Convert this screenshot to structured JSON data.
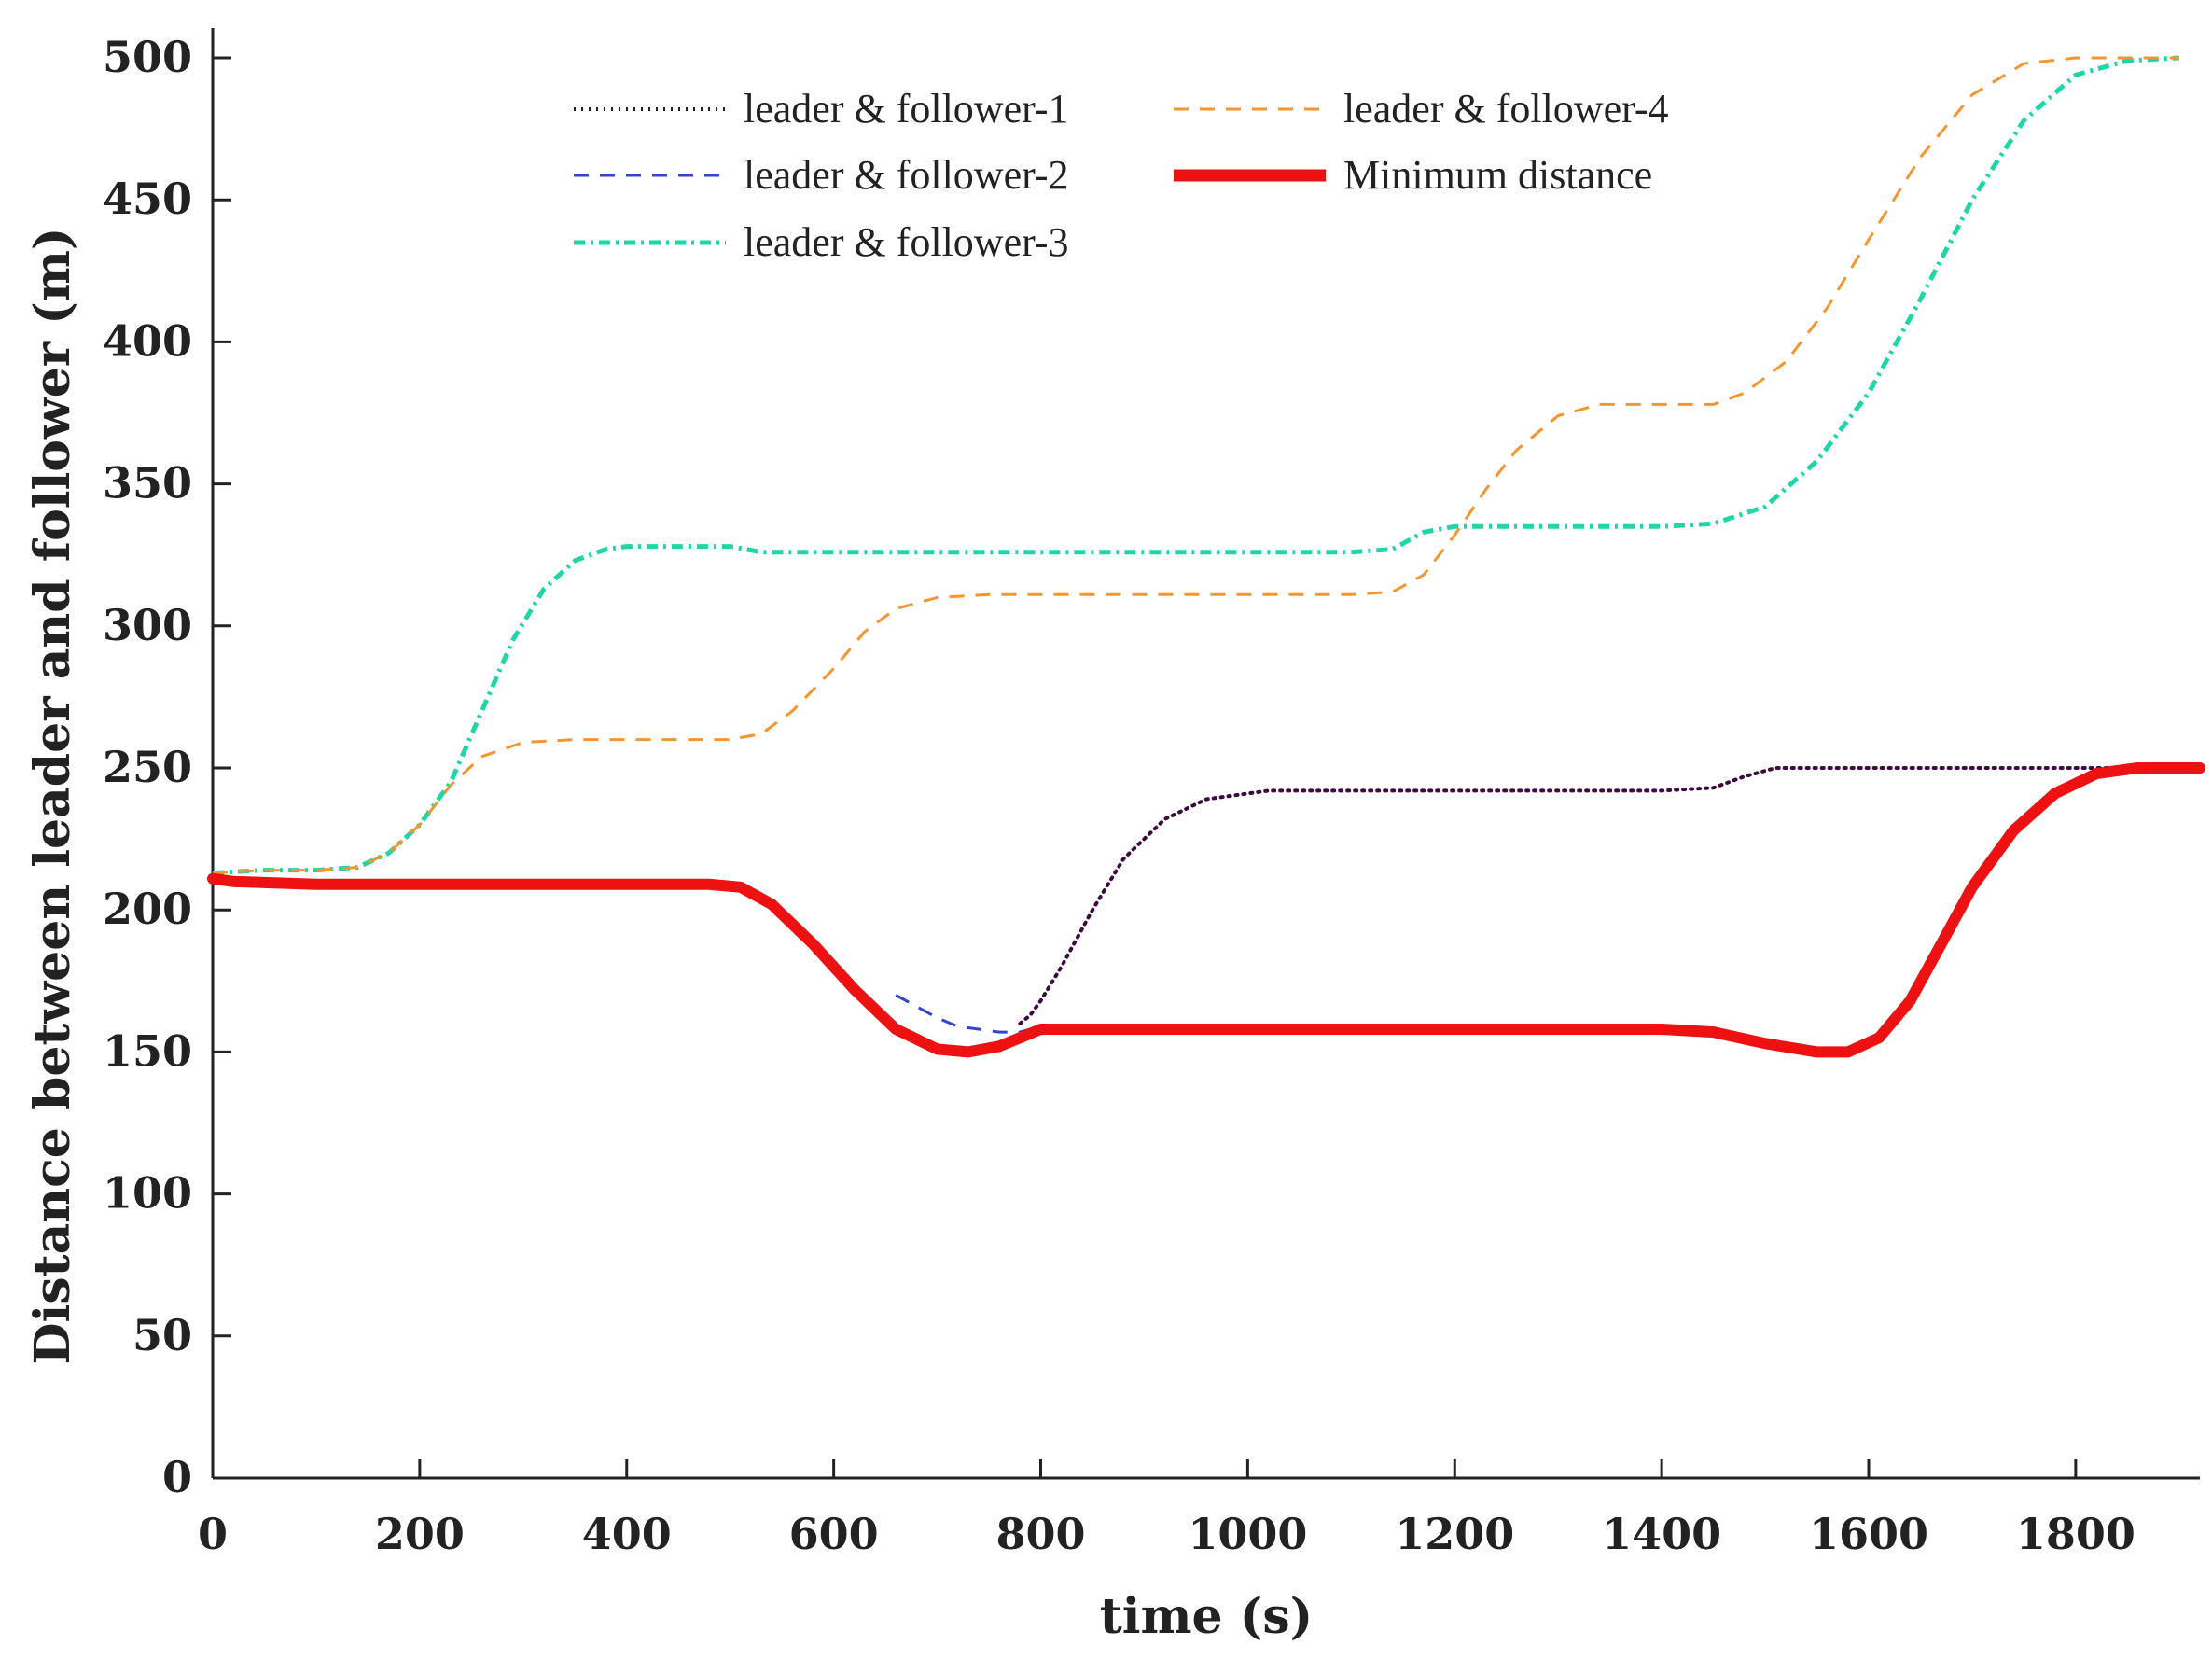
{
  "chart_data": {
    "type": "line",
    "title": "",
    "xlabel": "time (s)",
    "ylabel": "Distance between leader and follower (m)",
    "xlim": [
      0,
      1920
    ],
    "ylim": [
      0,
      500
    ],
    "xticks": [
      0,
      200,
      400,
      600,
      800,
      1000,
      1200,
      1400,
      1600,
      1800
    ],
    "yticks": [
      0,
      50,
      100,
      150,
      200,
      250,
      300,
      350,
      400,
      450,
      500
    ],
    "grid": false,
    "legend_position": "top-center",
    "series": [
      {
        "name": "leader & follower-1",
        "color": "#3b0a3f",
        "style": "dotted",
        "points": [
          [
            780,
            160
          ],
          [
            790,
            163
          ],
          [
            800,
            168
          ],
          [
            820,
            180
          ],
          [
            850,
            200
          ],
          [
            880,
            218
          ],
          [
            920,
            232
          ],
          [
            960,
            239
          ],
          [
            1000,
            241
          ],
          [
            1020,
            242
          ],
          [
            1100,
            242
          ],
          [
            1200,
            242
          ],
          [
            1300,
            242
          ],
          [
            1400,
            242
          ],
          [
            1450,
            243
          ],
          [
            1480,
            247
          ],
          [
            1510,
            250
          ],
          [
            1600,
            250
          ],
          [
            1700,
            250
          ],
          [
            1800,
            250
          ],
          [
            1900,
            250
          ]
        ]
      },
      {
        "name": "leader & follower-2",
        "color": "#3344cc",
        "style": "dashed",
        "points": [
          [
            660,
            170
          ],
          [
            680,
            166
          ],
          [
            700,
            162
          ],
          [
            720,
            159
          ],
          [
            740,
            158
          ],
          [
            760,
            157
          ],
          [
            780,
            157
          ],
          [
            790,
            158
          ]
        ]
      },
      {
        "name": "leader & follower-3",
        "color": "#1ed6a8",
        "style": "dashdot",
        "points": [
          [
            0,
            213
          ],
          [
            50,
            214
          ],
          [
            100,
            214
          ],
          [
            140,
            215
          ],
          [
            170,
            220
          ],
          [
            200,
            230
          ],
          [
            230,
            245
          ],
          [
            260,
            270
          ],
          [
            290,
            295
          ],
          [
            320,
            313
          ],
          [
            350,
            323
          ],
          [
            380,
            327
          ],
          [
            400,
            328
          ],
          [
            450,
            328
          ],
          [
            500,
            328
          ],
          [
            530,
            326
          ],
          [
            600,
            326
          ],
          [
            700,
            326
          ],
          [
            800,
            326
          ],
          [
            900,
            326
          ],
          [
            1000,
            326
          ],
          [
            1100,
            326
          ],
          [
            1140,
            327
          ],
          [
            1170,
            333
          ],
          [
            1200,
            335
          ],
          [
            1300,
            335
          ],
          [
            1400,
            335
          ],
          [
            1450,
            336
          ],
          [
            1500,
            342
          ],
          [
            1550,
            358
          ],
          [
            1600,
            382
          ],
          [
            1650,
            415
          ],
          [
            1700,
            450
          ],
          [
            1750,
            478
          ],
          [
            1800,
            494
          ],
          [
            1850,
            499
          ],
          [
            1900,
            500
          ]
        ]
      },
      {
        "name": "leader & follower-4",
        "color": "#f5952e",
        "style": "dashed",
        "points": [
          [
            0,
            213
          ],
          [
            50,
            214
          ],
          [
            100,
            214
          ],
          [
            140,
            215
          ],
          [
            170,
            220
          ],
          [
            200,
            230
          ],
          [
            230,
            244
          ],
          [
            260,
            254
          ],
          [
            300,
            259
          ],
          [
            350,
            260
          ],
          [
            400,
            260
          ],
          [
            450,
            260
          ],
          [
            500,
            260
          ],
          [
            530,
            262
          ],
          [
            560,
            270
          ],
          [
            600,
            285
          ],
          [
            630,
            298
          ],
          [
            660,
            306
          ],
          [
            700,
            310
          ],
          [
            750,
            311
          ],
          [
            800,
            311
          ],
          [
            900,
            311
          ],
          [
            1000,
            311
          ],
          [
            1100,
            311
          ],
          [
            1140,
            312
          ],
          [
            1170,
            318
          ],
          [
            1200,
            332
          ],
          [
            1230,
            348
          ],
          [
            1260,
            362
          ],
          [
            1300,
            374
          ],
          [
            1340,
            378
          ],
          [
            1400,
            378
          ],
          [
            1450,
            378
          ],
          [
            1480,
            382
          ],
          [
            1520,
            393
          ],
          [
            1560,
            412
          ],
          [
            1600,
            436
          ],
          [
            1650,
            465
          ],
          [
            1700,
            487
          ],
          [
            1750,
            498
          ],
          [
            1800,
            500
          ],
          [
            1900,
            500
          ]
        ]
      },
      {
        "name": "Minimum distance",
        "color": "#ee1111",
        "style": "solid",
        "points": [
          [
            0,
            211
          ],
          [
            20,
            210
          ],
          [
            100,
            209
          ],
          [
            200,
            209
          ],
          [
            300,
            209
          ],
          [
            400,
            209
          ],
          [
            480,
            209
          ],
          [
            510,
            208
          ],
          [
            540,
            202
          ],
          [
            580,
            188
          ],
          [
            620,
            172
          ],
          [
            660,
            158
          ],
          [
            700,
            151
          ],
          [
            730,
            150
          ],
          [
            760,
            152
          ],
          [
            780,
            155
          ],
          [
            800,
            158
          ],
          [
            900,
            158
          ],
          [
            1000,
            158
          ],
          [
            1100,
            158
          ],
          [
            1200,
            158
          ],
          [
            1300,
            158
          ],
          [
            1400,
            158
          ],
          [
            1450,
            157
          ],
          [
            1500,
            153
          ],
          [
            1550,
            150
          ],
          [
            1580,
            150
          ],
          [
            1610,
            155
          ],
          [
            1640,
            168
          ],
          [
            1670,
            188
          ],
          [
            1700,
            208
          ],
          [
            1740,
            228
          ],
          [
            1780,
            241
          ],
          [
            1820,
            248
          ],
          [
            1860,
            250
          ],
          [
            1920,
            250
          ]
        ]
      }
    ]
  }
}
